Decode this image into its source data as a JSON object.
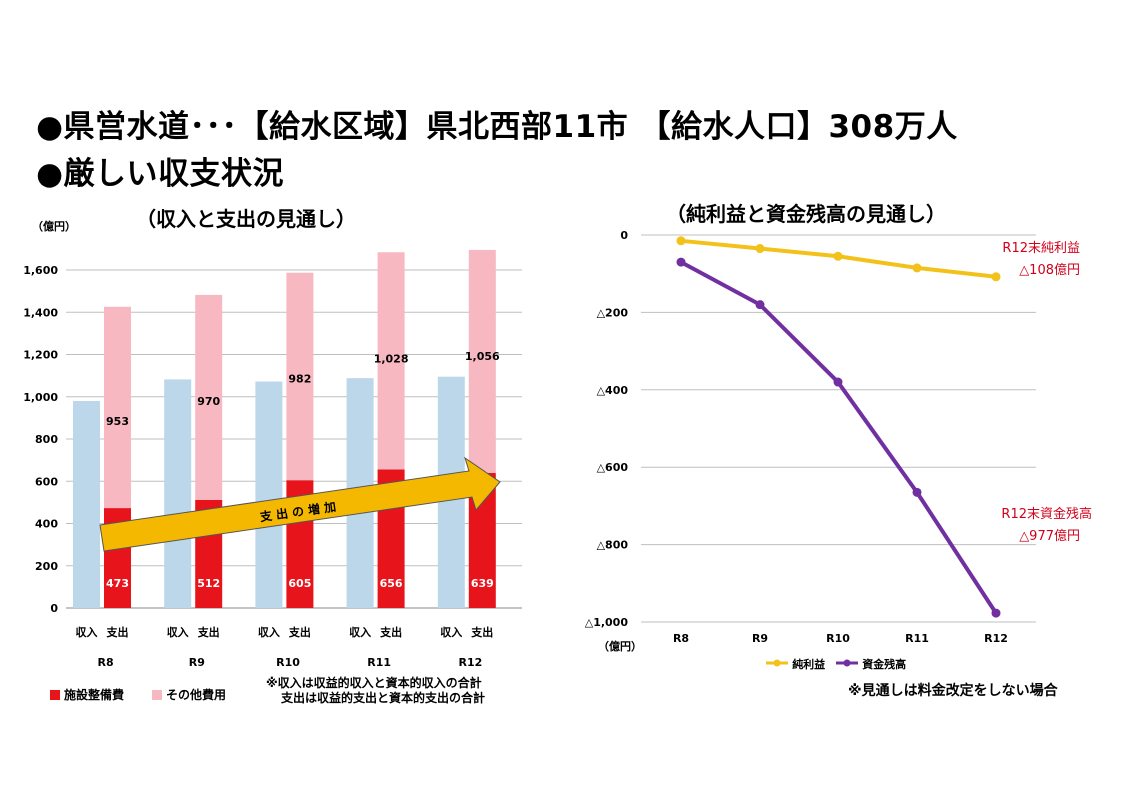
{
  "headline": {
    "line1": "●県営水道･･･【給水区域】県北西部11市 【給水人口】308万人",
    "line2": "●厳しい収支状況"
  },
  "colors": {
    "revenue": "#bcd6ea",
    "facility": "#e8141c",
    "other": "#f8b8c2",
    "net_profit": "#f2c21b",
    "fund_balance": "#7030a0",
    "arrow": "#f5b800",
    "annotation": "#d0021b"
  },
  "chart_data": [
    {
      "type": "bar",
      "title": "（収入と支出の見通し）",
      "unit_label": "（億円）",
      "categories": [
        "R8",
        "R9",
        "R10",
        "R11",
        "R12"
      ],
      "bar_labels": [
        "収入",
        "支出"
      ],
      "ylim": [
        0,
        1800
      ],
      "yticks": [
        "0",
        "200",
        "400",
        "600",
        "800",
        "1,000",
        "1,200",
        "1,400",
        "1,600"
      ],
      "series": [
        {
          "name": "収入",
          "values": [
            980,
            1082,
            1072,
            1088,
            1095
          ]
        },
        {
          "name": "施設整備費",
          "values": [
            473,
            512,
            605,
            656,
            639
          ]
        },
        {
          "name": "その他費用",
          "values": [
            953,
            970,
            982,
            1028,
            1056
          ]
        }
      ],
      "data_labels_facility": [
        "473",
        "512",
        "605",
        "656",
        "639"
      ],
      "data_labels_other": [
        "953",
        "970",
        "982",
        "1,028",
        "1,056"
      ],
      "arrow_label": "支 出 の 増 加",
      "legend": [
        "施設整備費",
        "その他費用"
      ],
      "note_lines": [
        "※収入は収益的収入と資本的収入の合計",
        "支出は収益的支出と資本的支出の合計"
      ],
      "grid": true
    },
    {
      "type": "line",
      "title": "（純利益と資金残高の見通し）",
      "unit_label": "（億円）",
      "categories": [
        "R8",
        "R9",
        "R10",
        "R11",
        "R12"
      ],
      "ylim": [
        -1000,
        0
      ],
      "yticks": [
        "0",
        "△200",
        "△400",
        "△600",
        "△800",
        "△1,000"
      ],
      "series": [
        {
          "name": "純利益",
          "values": [
            -15,
            -35,
            -55,
            -85,
            -108
          ]
        },
        {
          "name": "資金残高",
          "values": [
            -70,
            -180,
            -380,
            -665,
            -977
          ]
        }
      ],
      "annotations": {
        "net_profit_line1": "R12末純利益",
        "net_profit_line2": "△108億円",
        "fund_line1": "R12末資金残高",
        "fund_line2": "△977億円"
      },
      "grid": true
    }
  ],
  "footnote": "※見通しは料金改定をしない場合"
}
